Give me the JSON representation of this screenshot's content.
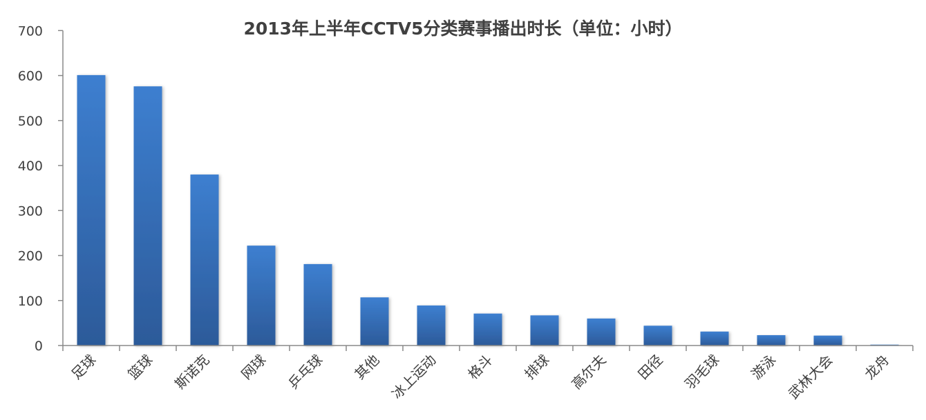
{
  "chart_data": {
    "type": "bar",
    "title": "2013年上半年CCTV5分类赛事播出时长（单位：小时）",
    "xlabel": "",
    "ylabel": "",
    "categories": [
      "足球",
      "篮球",
      "斯诺克",
      "网球",
      "乒乓球",
      "其他",
      "冰上运动",
      "格斗",
      "排球",
      "高尔夫",
      "田径",
      "羽毛球",
      "游泳",
      "武林大会",
      "龙舟"
    ],
    "values": [
      601,
      576,
      380,
      222,
      181,
      107,
      89,
      71,
      67,
      60,
      44,
      31,
      23,
      22,
      2
    ],
    "ylim": [
      0,
      700
    ],
    "yticks": [
      0,
      100,
      200,
      300,
      400,
      500,
      600,
      700
    ],
    "grid": false,
    "legend": "none",
    "colors": {
      "bar_top": "#3d7fd0",
      "bar_bottom": "#2c5a99",
      "axis": "#888888",
      "text": "#404040"
    }
  }
}
